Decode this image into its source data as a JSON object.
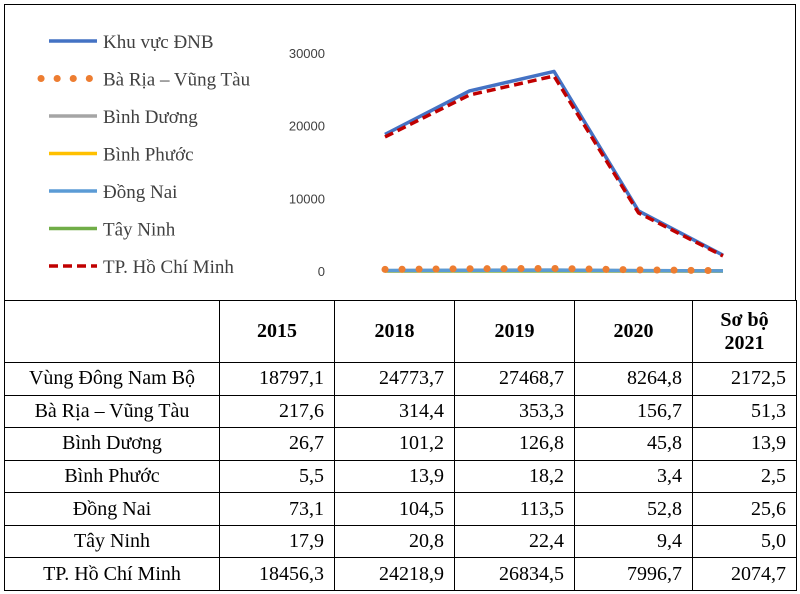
{
  "chart_data": {
    "type": "line",
    "categories": [
      "2015",
      "2018",
      "2019",
      "2020",
      "Sơ bộ 2021"
    ],
    "ylim": [
      0,
      30000
    ],
    "yticks": [
      "0",
      "10000",
      "20000",
      "30000"
    ],
    "legend_position": "left",
    "series": [
      {
        "name": "Khu vực ĐNB",
        "values": [
          18797.1,
          24773.7,
          27468.7,
          8264.8,
          2172.5
        ],
        "color": "#4472C4",
        "style": "solid"
      },
      {
        "name": "Bà Rịa – Vũng Tàu",
        "values": [
          217.6,
          314.4,
          353.3,
          156.7,
          51.3
        ],
        "color": "#ED7D31",
        "style": "dots"
      },
      {
        "name": "Bình Dương",
        "values": [
          26.7,
          101.2,
          126.8,
          45.8,
          13.9
        ],
        "color": "#A5A5A5",
        "style": "solid"
      },
      {
        "name": "Bình Phước",
        "values": [
          5.5,
          13.9,
          18.2,
          3.4,
          2.5
        ],
        "color": "#FFC000",
        "style": "solid"
      },
      {
        "name": "Đồng Nai",
        "values": [
          73.1,
          104.5,
          113.5,
          52.8,
          25.6
        ],
        "color": "#5B9BD5",
        "style": "solid"
      },
      {
        "name": "Tây Ninh",
        "values": [
          17.9,
          20.8,
          22.4,
          9.4,
          5.0
        ],
        "color": "#70AD47",
        "style": "solid"
      },
      {
        "name": "TP. Hồ Chí Minh",
        "values": [
          18456.3,
          24218.9,
          26834.5,
          7996.7,
          2074.7
        ],
        "color": "#C00000",
        "style": "dashed"
      }
    ]
  },
  "table": {
    "headers": [
      "",
      "2015",
      "2018",
      "2019",
      "2020",
      "Sơ bộ"
    ],
    "header_last_line2": "2021",
    "rows": [
      {
        "name": "Vùng Đông Nam Bộ",
        "values": [
          "18797,1",
          "24773,7",
          "27468,7",
          "8264,8",
          "2172,5"
        ]
      },
      {
        "name": "Bà Rịa – Vũng Tàu",
        "values": [
          "217,6",
          "314,4",
          "353,3",
          "156,7",
          "51,3"
        ]
      },
      {
        "name": "Bình Dương",
        "values": [
          "26,7",
          "101,2",
          "126,8",
          "45,8",
          "13,9"
        ]
      },
      {
        "name": "Bình Phước",
        "values": [
          "5,5",
          "13,9",
          "18,2",
          "3,4",
          "2,5"
        ]
      },
      {
        "name": "Đồng Nai",
        "values": [
          "73,1",
          "104,5",
          "113,5",
          "52,8",
          "25,6"
        ]
      },
      {
        "name": "Tây Ninh",
        "values": [
          "17,9",
          "20,8",
          "22,4",
          "9,4",
          "5,0"
        ]
      },
      {
        "name": "TP. Hồ Chí Minh",
        "values": [
          "18456,3",
          "24218,9",
          "26834,5",
          "7996,7",
          "2074,7"
        ]
      }
    ]
  }
}
